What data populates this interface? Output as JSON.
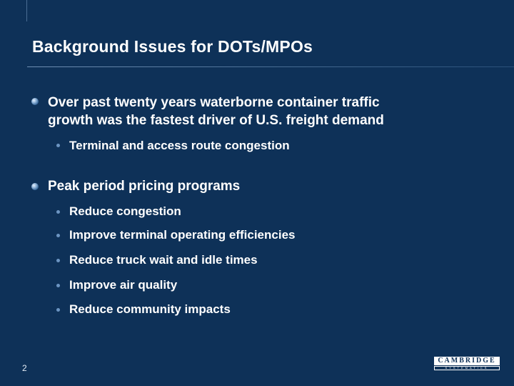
{
  "slide": {
    "title": "Background Issues for DOTs/MPOs",
    "page_number": "2",
    "logo_text": "CAMBRIDGE",
    "logo_subtext": "SYSTEMATICS"
  },
  "bullets": [
    {
      "line1": "Over past twenty years waterborne container traffic",
      "line2": "growth was the fastest driver of U.S. freight demand",
      "sub": [
        "Terminal and access route congestion"
      ]
    },
    {
      "line1": "Peak period pricing programs",
      "sub": [
        "Reduce congestion",
        "Improve terminal operating efficiencies",
        "Reduce truck wait and idle times",
        "Improve air quality",
        "Reduce community impacts"
      ]
    }
  ]
}
